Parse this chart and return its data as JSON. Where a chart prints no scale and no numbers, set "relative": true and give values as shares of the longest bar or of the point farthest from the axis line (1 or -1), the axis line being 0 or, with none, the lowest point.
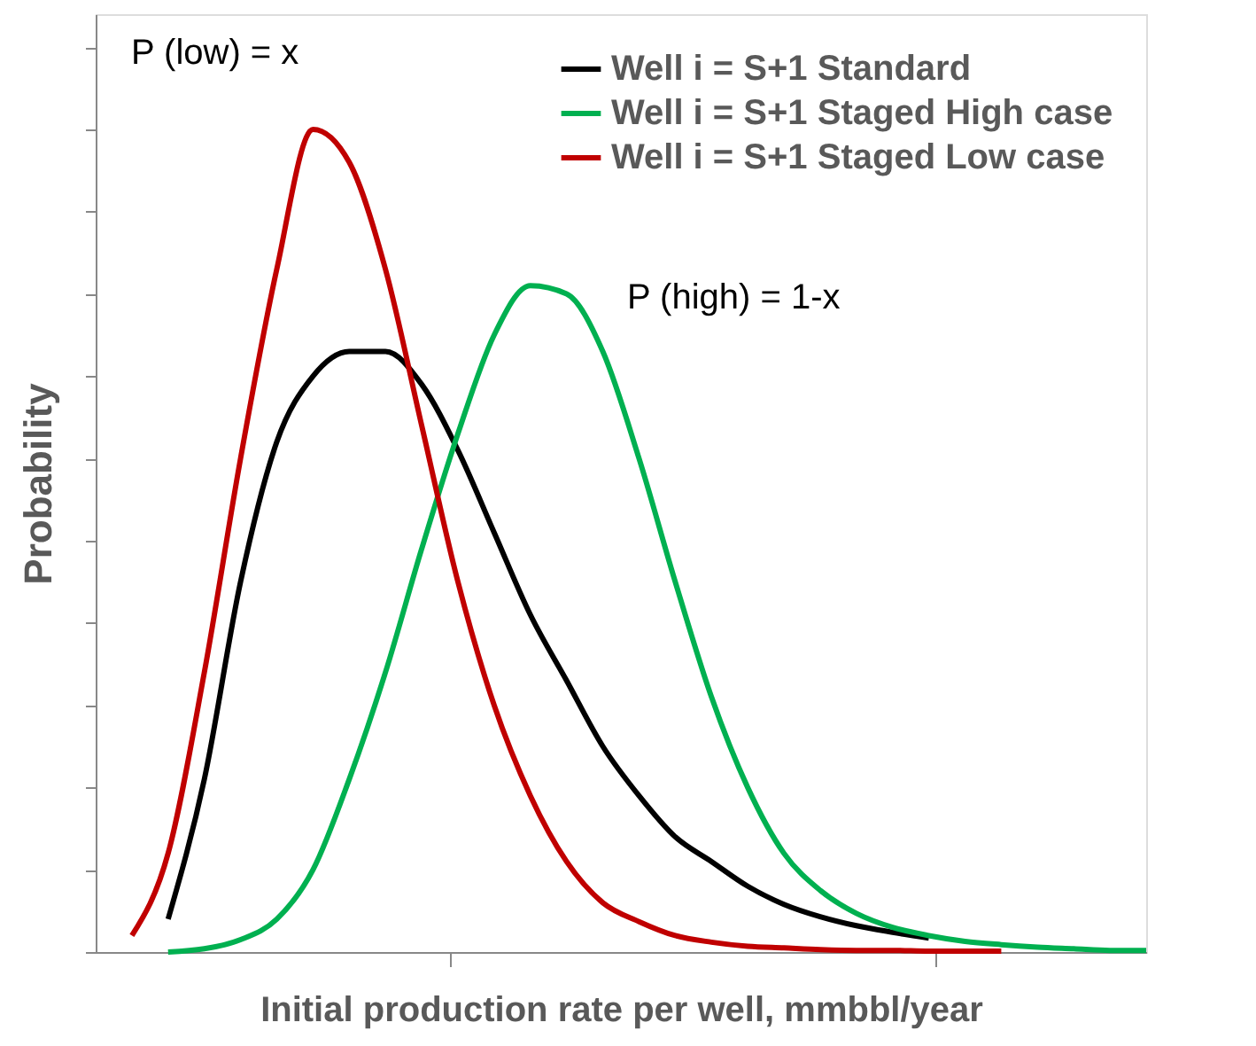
{
  "chart_data": {
    "type": "line",
    "relative": true,
    "xlabel": "Initial production rate per well, mmbbl/year",
    "ylabel": "Probability",
    "categories": [
      null,
      null,
      null,
      null,
      null,
      null,
      null,
      null,
      null,
      null,
      null,
      null,
      null,
      null,
      null,
      null,
      null,
      null,
      null,
      null,
      null,
      null,
      null,
      null,
      null,
      null,
      null,
      null,
      null,
      null
    ],
    "series": [
      {
        "name": "Well i = S+1 Standard",
        "color": "#000000",
        "values": [
          null,
          null,
          0.04,
          0.21,
          0.45,
          0.62,
          0.7,
          0.73,
          0.73,
          0.69,
          0.61,
          0.51,
          0.41,
          0.33,
          0.25,
          0.19,
          0.14,
          0.11,
          0.08,
          0.058,
          0.043,
          0.032,
          0.024,
          0.017,
          null,
          null,
          null,
          null,
          null,
          null
        ]
      },
      {
        "name": "Well i = S+1 Staged High case",
        "color": "#00b050",
        "values": [
          null,
          null,
          0.0,
          0.004,
          0.015,
          0.04,
          0.1,
          0.21,
          0.34,
          0.49,
          0.63,
          0.75,
          0.81,
          0.8,
          0.73,
          0.6,
          0.45,
          0.31,
          0.2,
          0.12,
          0.075,
          0.047,
          0.03,
          0.02,
          0.013,
          0.009,
          0.006,
          0.004,
          0.002,
          0.002
        ]
      },
      {
        "name": "Well i = S+1 Staged Low case",
        "color": "#c00000",
        "values": [
          null,
          0.02,
          0.12,
          0.34,
          0.6,
          0.83,
          1.0,
          0.96,
          0.83,
          0.64,
          0.45,
          0.3,
          0.19,
          0.11,
          0.06,
          0.037,
          0.02,
          0.012,
          0.007,
          0.005,
          0.003,
          0.002,
          0.002,
          0.001,
          0.001,
          0.001,
          null,
          null,
          null,
          null
        ]
      }
    ],
    "annotations": [
      "P (low) = x",
      "P (high) = 1-x"
    ],
    "legend": "top right",
    "grid": false,
    "tick_labels": false,
    "line_style": "solid",
    "marker": "none"
  }
}
